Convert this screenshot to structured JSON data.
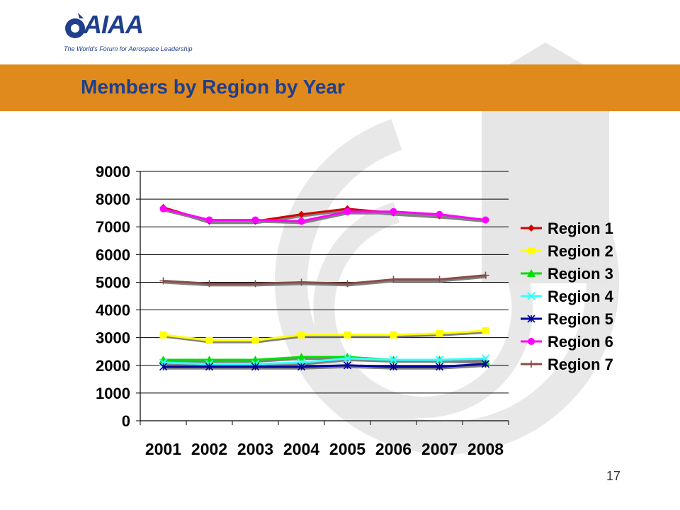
{
  "logo": {
    "text": "AIAA",
    "tagline": "The World's Forum for Aerospace Leadership"
  },
  "slide": {
    "title": "Members by Region by Year",
    "page_number": "17"
  },
  "colors": {
    "title_bar": "#e08a1e",
    "title_text": "#1f3f8c",
    "watermark": "#e6e6e6"
  },
  "chart_data": {
    "type": "line",
    "title": "",
    "xlabel": "",
    "ylabel": "",
    "categories": [
      "2001",
      "2002",
      "2003",
      "2004",
      "2005",
      "2006",
      "2007",
      "2008"
    ],
    "ylim": [
      0,
      9000
    ],
    "yticks": [
      "0",
      "1000",
      "2000",
      "3000",
      "4000",
      "5000",
      "6000",
      "7000",
      "8000",
      "9000"
    ],
    "grid": "horizontal",
    "legend_position": "right",
    "series": [
      {
        "name": "Region 1",
        "color": "#d40000",
        "marker": "diamond",
        "values": [
          7700,
          7200,
          7200,
          7450,
          7650,
          7500,
          7400,
          7250
        ]
      },
      {
        "name": "Region 2",
        "color": "#ffff00",
        "marker": "square",
        "values": [
          3100,
          2900,
          2900,
          3100,
          3100,
          3100,
          3150,
          3250
        ]
      },
      {
        "name": "Region 3",
        "color": "#00e000",
        "marker": "triangle",
        "values": [
          2200,
          2200,
          2200,
          2300,
          2300,
          2200,
          2200,
          2150
        ]
      },
      {
        "name": "Region 4",
        "color": "#33ffff",
        "marker": "x",
        "values": [
          2100,
          2050,
          2050,
          2100,
          2250,
          2200,
          2200,
          2250
        ]
      },
      {
        "name": "Region 5",
        "color": "#0000a0",
        "marker": "asterisk",
        "values": [
          1950,
          1950,
          1950,
          1950,
          2000,
          1950,
          1950,
          2050
        ]
      },
      {
        "name": "Region 6",
        "color": "#ff00ff",
        "marker": "circle",
        "values": [
          7650,
          7250,
          7250,
          7200,
          7550,
          7550,
          7450,
          7250
        ]
      },
      {
        "name": "Region 7",
        "color": "#8a4b4b",
        "marker": "plus",
        "values": [
          5050,
          4950,
          4950,
          5000,
          4950,
          5100,
          5100,
          5250
        ]
      }
    ]
  }
}
